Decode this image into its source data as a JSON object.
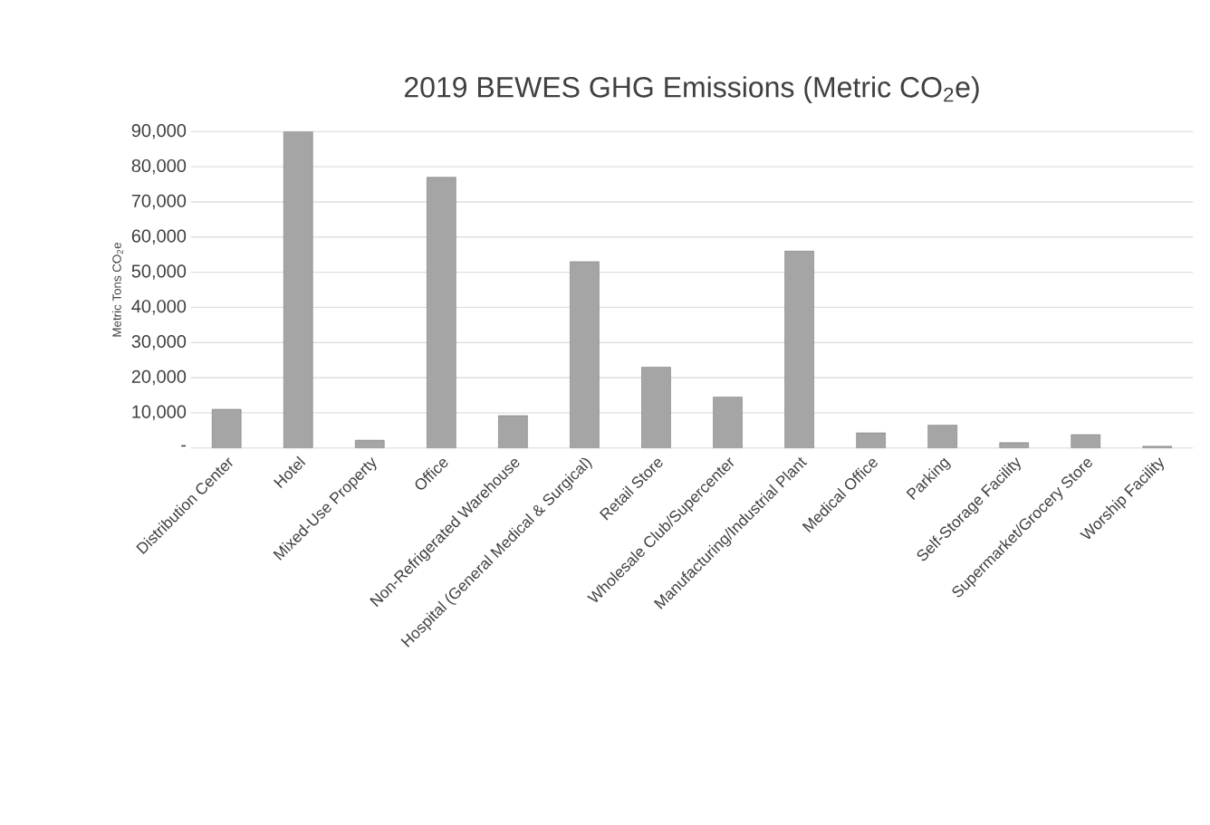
{
  "chart_data": {
    "type": "bar",
    "title": "2019 BEWES GHG Emissions (Metric CO$_{2}$e)",
    "ylabel": "Metric Tons CO$_{2}$e",
    "categories": [
      "Distribution Center",
      "Hotel",
      "Mixed-Use Property",
      "Office",
      "Non-Refrigerated Warehouse",
      "Hospital (General Medical & Surgical)",
      "Retail Store",
      "Wholesale Club/Supercenter",
      "Manufacturing/Industrial Plant",
      "Medical Office",
      "Parking",
      "Self-Storage Facility",
      "Supermarket/Grocery Store",
      "Worship Facility"
    ],
    "values": [
      11000,
      90000,
      2200,
      77000,
      9200,
      53000,
      23000,
      14500,
      56000,
      4300,
      6500,
      1500,
      3800,
      500
    ],
    "color": "#a5a5a5",
    "ylim": [
      0,
      90000
    ],
    "yticks": [
      {
        "value": 0,
        "label": "-"
      },
      {
        "value": 10000,
        "label": "10,000"
      },
      {
        "value": 20000,
        "label": "20,000"
      },
      {
        "value": 30000,
        "label": "30,000"
      },
      {
        "value": 40000,
        "label": "40,000"
      },
      {
        "value": 50000,
        "label": "50,000"
      },
      {
        "value": 60000,
        "label": "60,000"
      },
      {
        "value": 70000,
        "label": "70,000"
      },
      {
        "value": 80000,
        "label": "80,000"
      },
      {
        "value": 90000,
        "label": "90,000"
      }
    ],
    "grid": "y"
  }
}
